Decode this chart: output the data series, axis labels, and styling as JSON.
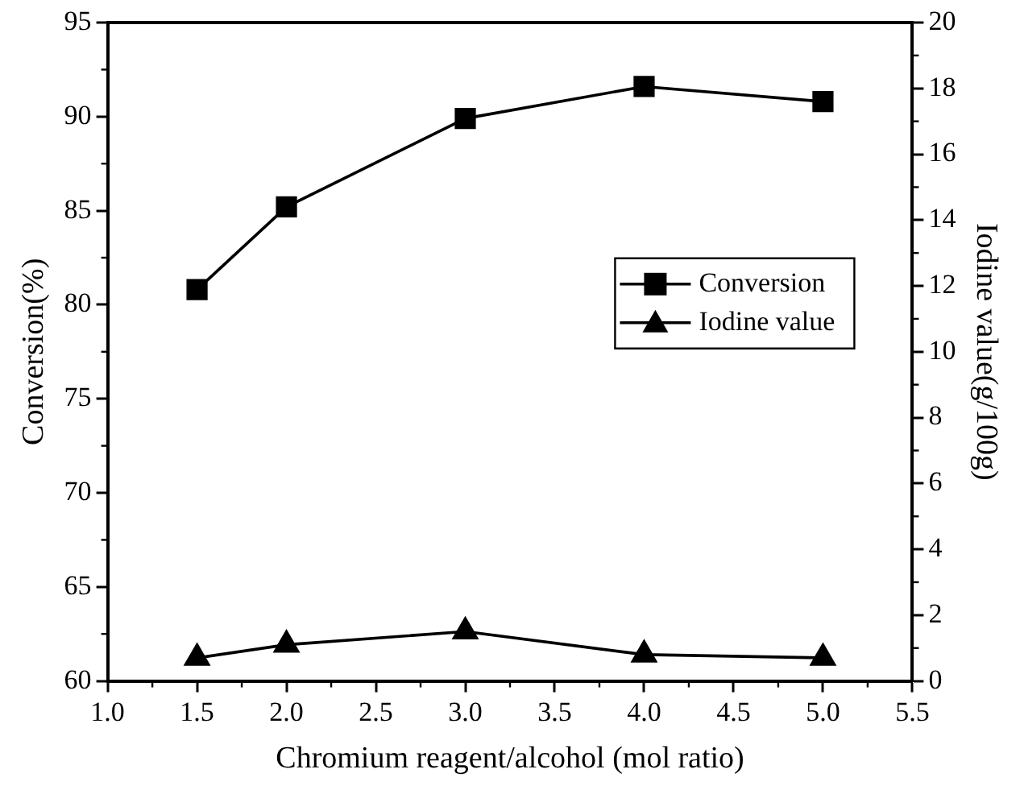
{
  "chart_data": {
    "type": "line",
    "xlabel": "Chromium reagent/alcohol (mol ratio)",
    "ylabel": "Conversion(%)",
    "y2label": "Iodine value(g/100g)",
    "x": [
      1.5,
      2.0,
      3.0,
      4.0,
      5.0
    ],
    "xlim": [
      1.0,
      5.5
    ],
    "xticks": [
      {
        "value": 1.0,
        "label": "1.0"
      },
      {
        "value": 1.5,
        "label": "1.5"
      },
      {
        "value": 2.0,
        "label": "2.0"
      },
      {
        "value": 2.5,
        "label": "2.5"
      },
      {
        "value": 3.0,
        "label": "3.0"
      },
      {
        "value": 3.5,
        "label": "3.5"
      },
      {
        "value": 4.0,
        "label": "4.0"
      },
      {
        "value": 4.5,
        "label": "4.5"
      },
      {
        "value": 5.0,
        "label": "5.0"
      },
      {
        "value": 5.5,
        "label": "5.5"
      }
    ],
    "ylim": [
      60,
      95
    ],
    "yticks": [
      60,
      65,
      70,
      75,
      80,
      85,
      90,
      95
    ],
    "y2lim": [
      0,
      20
    ],
    "y2ticks": [
      0,
      2,
      4,
      6,
      8,
      10,
      12,
      14,
      16,
      18,
      20
    ],
    "series": [
      {
        "name": "Conversion",
        "color": "#000000",
        "marker": "square",
        "values": [
          80.8,
          85.2,
          89.9,
          91.6,
          90.8
        ]
      },
      {
        "name": "Iodine value",
        "color": "#000000",
        "marker": "triangle",
        "axis": "y2",
        "values": [
          0.7,
          1.1,
          1.5,
          0.8,
          0.7
        ]
      }
    ],
    "line_style": "solid",
    "grid": false,
    "legend": "right"
  }
}
